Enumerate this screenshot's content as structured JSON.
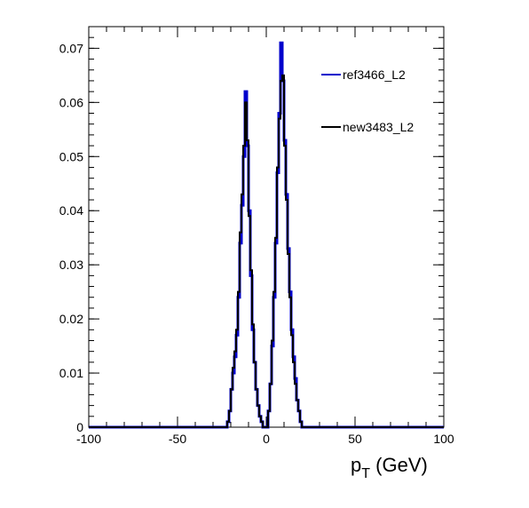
{
  "chart_data": {
    "type": "line",
    "title": "",
    "xlabel": {
      "main": "p",
      "sub": "T",
      "unit": " (GeV)"
    },
    "ylabel": "",
    "xlim": [
      -100,
      100
    ],
    "ylim": [
      0,
      0.074
    ],
    "xticks": [
      -100,
      -50,
      0,
      50,
      100
    ],
    "yticks": [
      0,
      0.01,
      0.02,
      0.03,
      0.04,
      0.05,
      0.06,
      0.07
    ],
    "xtick_labels": [
      "-100",
      "-50",
      "0",
      "50",
      "100"
    ],
    "ytick_labels": [
      "0",
      "0.01",
      "0.02",
      "0.03",
      "0.04",
      "0.05",
      "0.06",
      "0.07"
    ],
    "legend_position": "top-right",
    "bin_edges": [
      -25,
      -24,
      -23,
      -22,
      -21,
      -20,
      -19,
      -18,
      -17,
      -16,
      -15,
      -14,
      -13,
      -12,
      -11,
      -10,
      -9,
      -8,
      -7,
      -6,
      -5,
      -4,
      -3,
      -2,
      -1,
      0,
      1,
      2,
      3,
      4,
      5,
      6,
      7,
      8,
      9,
      10,
      11,
      12,
      13,
      14,
      15,
      16,
      17,
      18,
      19,
      20,
      21,
      22,
      23,
      24,
      25
    ],
    "series": [
      {
        "name": "ref3466_L2",
        "color": "#0000cc",
        "values": [
          0,
          0,
          0,
          0.001,
          0.003,
          0.007,
          0.01,
          0.013,
          0.017,
          0.024,
          0.034,
          0.041,
          0.05,
          0.062,
          0.052,
          0.04,
          0.028,
          0.018,
          0.012,
          0.007,
          0.004,
          0.002,
          0.001,
          0,
          0,
          0,
          0.003,
          0.008,
          0.015,
          0.024,
          0.034,
          0.047,
          0.058,
          0.071,
          0.064,
          0.053,
          0.043,
          0.033,
          0.025,
          0.018,
          0.013,
          0.009,
          0.005,
          0.003,
          0.001,
          0,
          0,
          0,
          0,
          0
        ]
      },
      {
        "name": "new3483_L2",
        "color": "#000000",
        "values": [
          0,
          0,
          0,
          0.001,
          0.003,
          0.007,
          0.011,
          0.014,
          0.018,
          0.025,
          0.036,
          0.043,
          0.052,
          0.06,
          0.053,
          0.039,
          0.029,
          0.019,
          0.012,
          0.007,
          0.004,
          0.002,
          0.001,
          0,
          0,
          0,
          0.003,
          0.008,
          0.016,
          0.025,
          0.035,
          0.048,
          0.057,
          0.064,
          0.065,
          0.052,
          0.042,
          0.032,
          0.024,
          0.017,
          0.012,
          0.008,
          0.005,
          0.003,
          0.001,
          0,
          0,
          0,
          0,
          0
        ]
      }
    ]
  }
}
